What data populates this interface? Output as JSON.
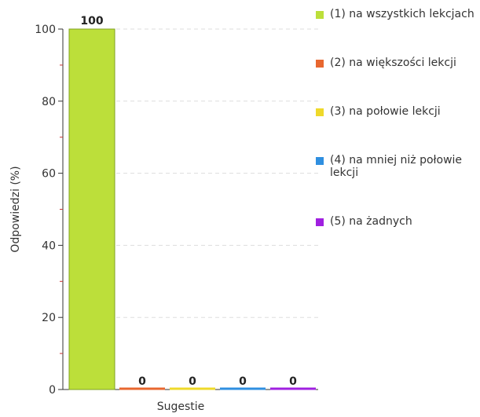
{
  "chart_data": {
    "type": "bar",
    "title": "",
    "xlabel": "Sugestie",
    "ylabel": "Odpowiedzi (%)",
    "ylim": [
      0,
      100
    ],
    "yticks": [
      0,
      20,
      40,
      60,
      80,
      100
    ],
    "grid": true,
    "legend_position": "right",
    "categories": [
      "(1) na wszystkich lekcjach",
      "(2) na większości lekcji",
      "(3) na połowie lekcji",
      "(4) na mniej niż połowie lekcji",
      "(5) na żadnych"
    ],
    "values": [
      100,
      0,
      0,
      0,
      0
    ],
    "data_labels": [
      "100",
      "0",
      "0",
      "0",
      "0"
    ],
    "colors": [
      "#bcdf3a",
      "#e8672f",
      "#efd92a",
      "#2f8fe0",
      "#a020e0"
    ]
  }
}
